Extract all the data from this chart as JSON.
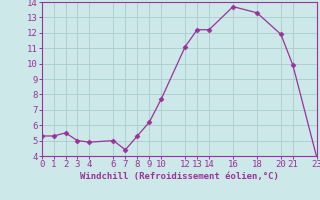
{
  "x": [
    0,
    1,
    2,
    3,
    4,
    6,
    7,
    8,
    9,
    10,
    12,
    13,
    14,
    16,
    18,
    20,
    21,
    23
  ],
  "y": [
    5.3,
    5.3,
    5.5,
    5.0,
    4.9,
    5.0,
    4.4,
    5.3,
    6.2,
    7.7,
    11.1,
    12.2,
    12.2,
    13.7,
    13.3,
    11.9,
    9.9,
    3.9
  ],
  "line_color": "#993399",
  "marker": "D",
  "marker_size": 2.5,
  "background_color": "#cce8e8",
  "grid_color": "#aacccc",
  "xlabel": "Windchill (Refroidissement éolien,°C)",
  "xlim": [
    0,
    23
  ],
  "ylim": [
    4,
    14
  ],
  "xticks": [
    0,
    1,
    2,
    3,
    4,
    6,
    7,
    8,
    9,
    10,
    12,
    13,
    14,
    16,
    18,
    20,
    21,
    23
  ],
  "yticks": [
    4,
    5,
    6,
    7,
    8,
    9,
    10,
    11,
    12,
    13,
    14
  ],
  "tick_color": "#993399",
  "label_color": "#993399",
  "spine_color": "#993399",
  "font_size": 6.5
}
